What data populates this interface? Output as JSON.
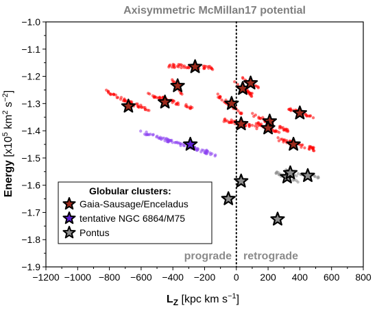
{
  "chart_data": {
    "type": "scatter",
    "title": "Axisymmetric McMillan17 potential",
    "xlabel": {
      "main": "L",
      "sub": "Z",
      "unit": " [kpc km s",
      "exp": "−1",
      "close": "]"
    },
    "ylabel": {
      "main": "Energy",
      "pre": " [x10",
      "exp1": "5",
      "mid": " km",
      "exp2": "2",
      "mid2": " s",
      "exp3": "−2",
      "close": "]"
    },
    "xlim": [
      -1200,
      800
    ],
    "ylim": [
      -1.9,
      -1.0
    ],
    "x_ticks": [
      "−1200",
      "−1000",
      "−800",
      "−600",
      "−400",
      "−200",
      "0",
      "200",
      "400",
      "600",
      "800"
    ],
    "x_tick_values": [
      -1200,
      -1000,
      -800,
      -600,
      -400,
      -200,
      0,
      200,
      400,
      600,
      800
    ],
    "y_ticks": [
      "−1.9",
      "−1.8",
      "−1.7",
      "−1.6",
      "−1.5",
      "−1.4",
      "−1.3",
      "−1.2",
      "−1.1",
      "−1.0"
    ],
    "y_tick_values": [
      -1.9,
      -1.8,
      -1.7,
      -1.6,
      -1.5,
      -1.4,
      -1.3,
      -1.2,
      -1.1,
      -1.0
    ],
    "grid": false,
    "legend_position": "bottom-left",
    "legend_title": "Globular clusters:",
    "region_labels": {
      "left": "prograde",
      "right": "retrograde"
    },
    "zero_line_x": 0,
    "series": [
      {
        "name": "Gaia-Sausage/Enceladus",
        "color": "#ff0000",
        "star_fill": "#9c2a1c",
        "clusters": [
          {
            "x": -260,
            "y": -1.165,
            "spread_x": [
              -430,
              -140
            ],
            "spread_y": [
              -1.16,
              -1.17
            ]
          },
          {
            "x": -370,
            "y": -1.235,
            "spread_x": [
              -400,
              -340
            ],
            "spread_y": [
              -1.21,
              -1.27
            ]
          },
          {
            "x": -680,
            "y": -1.31,
            "spread_x": [
              -820,
              -540
            ],
            "spread_y": [
              -1.255,
              -1.33
            ]
          },
          {
            "x": -450,
            "y": -1.295,
            "spread_x": [
              -560,
              -280
            ],
            "spread_y": [
              -1.265,
              -1.315
            ]
          },
          {
            "x": -30,
            "y": -1.3,
            "spread_x": [
              -120,
              40
            ],
            "spread_y": [
              -1.27,
              -1.34
            ]
          },
          {
            "x": 40,
            "y": -1.245,
            "spread_x": [
              -20,
              100
            ],
            "spread_y": [
              -1.22,
              -1.27
            ]
          },
          {
            "x": 90,
            "y": -1.225,
            "spread_x": [
              40,
              140
            ],
            "spread_y": [
              -1.21,
              -1.245
            ]
          },
          {
            "x": 30,
            "y": -1.375,
            "spread_x": [
              -80,
              150
            ],
            "spread_y": [
              -1.36,
              -1.39
            ]
          },
          {
            "x": 210,
            "y": -1.365,
            "spread_x": [
              100,
              330
            ],
            "spread_y": [
              -1.34,
              -1.4
            ]
          },
          {
            "x": 200,
            "y": -1.39,
            "spread_x": [
              120,
              280
            ],
            "spread_y": [
              -1.37,
              -1.41
            ]
          },
          {
            "x": 400,
            "y": -1.335,
            "spread_x": [
              330,
              480
            ],
            "spread_y": [
              -1.32,
              -1.35
            ]
          },
          {
            "x": 360,
            "y": -1.45,
            "spread_x": [
              260,
              500
            ],
            "spread_y": [
              -1.43,
              -1.47
            ]
          }
        ]
      },
      {
        "name": "tentative NGC 6864/M75",
        "color": "#8a3ff0",
        "star_fill": "#5a1fcf",
        "clusters": [
          {
            "x": -290,
            "y": -1.45,
            "spread_x": [
              -600,
              -120
            ],
            "spread_y": [
              -1.405,
              -1.49
            ]
          }
        ]
      },
      {
        "name": "Pontus",
        "color": "#8c8c8c",
        "star_fill": "#8c8c8c",
        "clusters": [
          {
            "x": 30,
            "y": -1.585,
            "spread_x": [
              30,
              30
            ],
            "spread_y": [
              -1.585,
              -1.585
            ]
          },
          {
            "x": -50,
            "y": -1.65,
            "spread_x": [
              -50,
              -50
            ],
            "spread_y": [
              -1.65,
              -1.65
            ]
          },
          {
            "x": 320,
            "y": -1.57,
            "spread_x": [
              250,
              390
            ],
            "spread_y": [
              -1.555,
              -1.585
            ]
          },
          {
            "x": 340,
            "y": -1.555,
            "spread_x": [
              300,
              380
            ],
            "spread_y": [
              -1.545,
              -1.565
            ]
          },
          {
            "x": 450,
            "y": -1.565,
            "spread_x": [
              380,
              520
            ],
            "spread_y": [
              -1.56,
              -1.57
            ]
          },
          {
            "x": 260,
            "y": -1.725,
            "spread_x": [
              250,
              270
            ],
            "spread_y": [
              -1.72,
              -1.73
            ]
          }
        ]
      }
    ]
  }
}
